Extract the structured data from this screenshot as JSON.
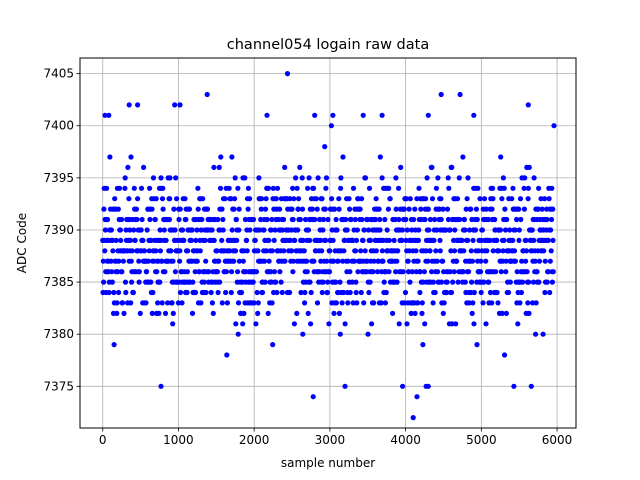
{
  "chart_data": {
    "type": "scatter",
    "title": "channel054 logain raw data",
    "xlabel": "sample number",
    "ylabel": "ADC Code",
    "xlim": [
      -300,
      6250
    ],
    "ylim": [
      7371,
      7406.5
    ],
    "x_ticks": [
      0,
      1000,
      2000,
      3000,
      4000,
      5000,
      6000
    ],
    "y_ticks": [
      7375,
      7380,
      7385,
      7390,
      7395,
      7400,
      7405
    ],
    "grid": true,
    "marker_color": "#0000ff",
    "series": [
      {
        "x_range": [
          0,
          5950
        ],
        "n_points": 6000,
        "value_range": [
          7372,
          7405
        ],
        "typical_band": [
          7381,
          7396
        ],
        "outliers": [
          {
            "x": 2440,
            "y": 7405
          },
          {
            "x": 1380,
            "y": 7403
          },
          {
            "x": 4470,
            "y": 7403
          },
          {
            "x": 4720,
            "y": 7403
          },
          {
            "x": 350,
            "y": 7402
          },
          {
            "x": 460,
            "y": 7402
          },
          {
            "x": 950,
            "y": 7402
          },
          {
            "x": 1020,
            "y": 7402
          },
          {
            "x": 5620,
            "y": 7402
          },
          {
            "x": 30,
            "y": 7401
          },
          {
            "x": 80,
            "y": 7401
          },
          {
            "x": 2170,
            "y": 7401
          },
          {
            "x": 2800,
            "y": 7401
          },
          {
            "x": 3040,
            "y": 7401
          },
          {
            "x": 3440,
            "y": 7401
          },
          {
            "x": 3690,
            "y": 7401
          },
          {
            "x": 4300,
            "y": 7401
          },
          {
            "x": 4900,
            "y": 7401
          },
          {
            "x": 3020,
            "y": 7400
          },
          {
            "x": 5960,
            "y": 7400
          },
          {
            "x": 770,
            "y": 7375
          },
          {
            "x": 3200,
            "y": 7375
          },
          {
            "x": 3960,
            "y": 7375
          },
          {
            "x": 4270,
            "y": 7375
          },
          {
            "x": 4300,
            "y": 7375
          },
          {
            "x": 5430,
            "y": 7375
          },
          {
            "x": 5660,
            "y": 7375
          },
          {
            "x": 2780,
            "y": 7374
          },
          {
            "x": 4150,
            "y": 7374
          },
          {
            "x": 4100,
            "y": 7372
          }
        ]
      }
    ]
  }
}
